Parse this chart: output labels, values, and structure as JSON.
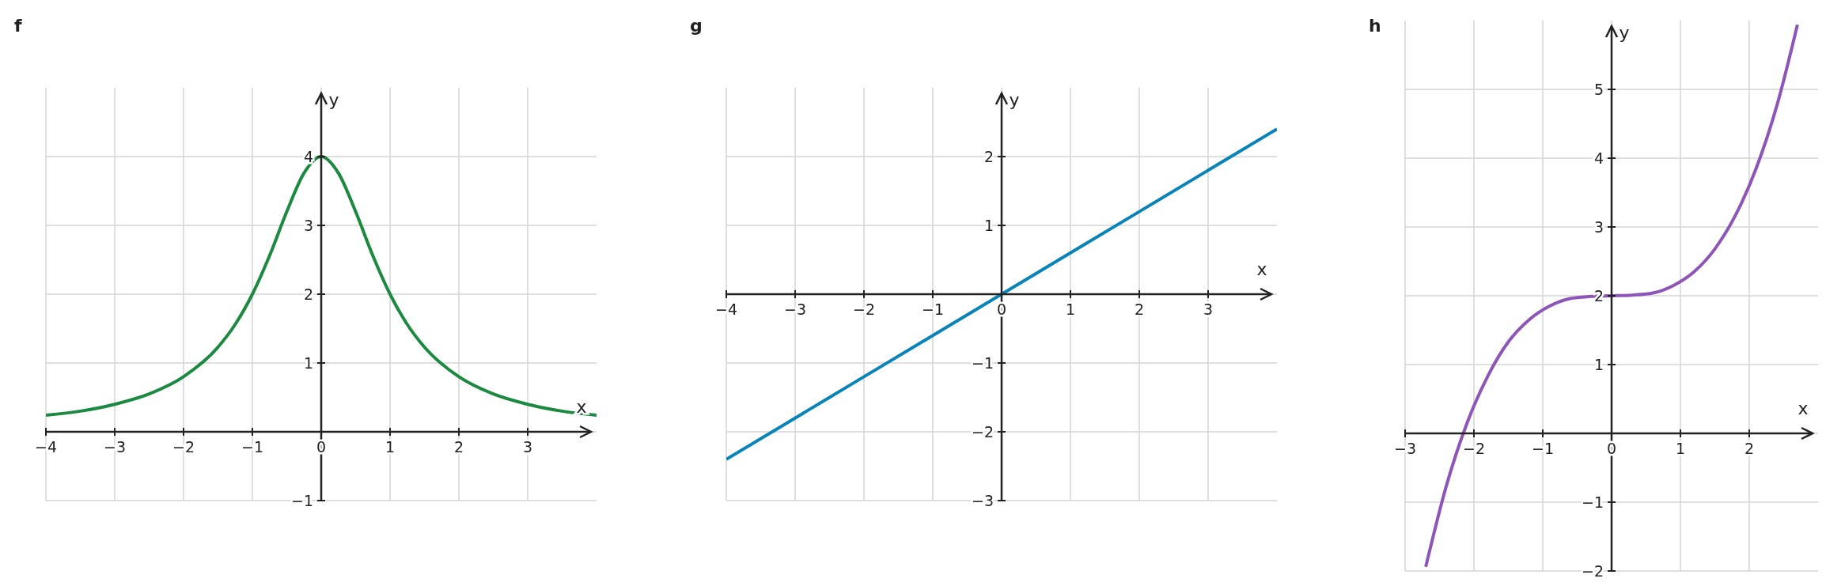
{
  "chart_data": [
    {
      "type": "line",
      "title": "f",
      "xlabel": "x",
      "ylabel": "y",
      "x": [
        -4,
        -3.5,
        -3,
        -2.5,
        -2,
        -1.5,
        -1.25,
        -1,
        -0.75,
        -0.5,
        -0.25,
        0,
        0.25,
        0.5,
        0.75,
        1,
        1.25,
        1.5,
        2,
        2.5,
        3,
        3.5,
        4
      ],
      "series": [
        {
          "color": "#1b8a40",
          "values": [
            0.24,
            0.3,
            0.4,
            0.55,
            0.8,
            1.23,
            1.56,
            2,
            2.56,
            3.2,
            3.76,
            4,
            3.76,
            3.2,
            2.56,
            2,
            1.56,
            1.23,
            0.8,
            0.55,
            0.4,
            0.3,
            0.24
          ]
        }
      ],
      "xlim": [
        -4,
        4
      ],
      "ylim": [
        -1,
        5
      ],
      "xticks": [
        {
          "value": -4,
          "label": "−4"
        },
        {
          "value": -3,
          "label": "−3"
        },
        {
          "value": -2,
          "label": "−2"
        },
        {
          "value": -1,
          "label": "−1"
        },
        0,
        1,
        2,
        3
      ],
      "yticks": [
        {
          "value": -1,
          "label": "−1"
        },
        {
          "value": 0,
          "label": null
        },
        1,
        2,
        3,
        4
      ],
      "grid": true,
      "line_style": "solid"
    },
    {
      "type": "line",
      "title": "g",
      "xlabel": "x",
      "ylabel": "y",
      "x": [
        -4,
        -2,
        0,
        2,
        4
      ],
      "series": [
        {
          "color": "#0a84b8",
          "values": [
            -2.4,
            -1.2,
            0,
            1.2,
            2.4
          ]
        }
      ],
      "xlim": [
        -4,
        4
      ],
      "ylim": [
        -3,
        3
      ],
      "xticks": [
        {
          "value": -4,
          "label": "−4"
        },
        {
          "value": -3,
          "label": "−3"
        },
        {
          "value": -2,
          "label": "−2"
        },
        {
          "value": -1,
          "label": "−1"
        },
        0,
        1,
        2,
        3
      ],
      "yticks": [
        {
          "value": -3,
          "label": "−3"
        },
        {
          "value": -2,
          "label": "−2"
        },
        {
          "value": -1,
          "label": "−1"
        },
        {
          "value": 0,
          "label": null
        },
        1,
        2
      ],
      "grid": true,
      "line_style": "solid"
    },
    {
      "type": "line",
      "title": "h",
      "xlabel": "x",
      "ylabel": "y",
      "x": [
        -2.7,
        -2.4,
        -2.1,
        -1.8,
        -1.5,
        -1.2,
        -0.9,
        -0.6,
        -0.3,
        0,
        0.3,
        0.6,
        0.9,
        1.2,
        1.5,
        1.8,
        2.1,
        2.4,
        2.7
      ],
      "series": [
        {
          "color": "#8e55b8",
          "values": [
            -1.94,
            -0.76,
            0.15,
            0.83,
            1.33,
            1.65,
            1.85,
            1.96,
            1.99,
            2,
            2.01,
            2.04,
            2.15,
            2.35,
            2.68,
            3.17,
            3.85,
            4.76,
            5.94
          ]
        }
      ],
      "xlim": [
        -3,
        3
      ],
      "ylim": [
        -2,
        6
      ],
      "xticks": [
        {
          "value": -3,
          "label": "−3"
        },
        {
          "value": -2,
          "label": "−2"
        },
        {
          "value": -1,
          "label": "−1"
        },
        0,
        1,
        2
      ],
      "yticks": [
        {
          "value": -2,
          "label": "−2"
        },
        {
          "value": -1,
          "label": "−1"
        },
        {
          "value": 0,
          "label": null
        },
        1,
        2,
        3,
        4,
        5
      ],
      "grid": true,
      "line_style": "solid"
    }
  ]
}
